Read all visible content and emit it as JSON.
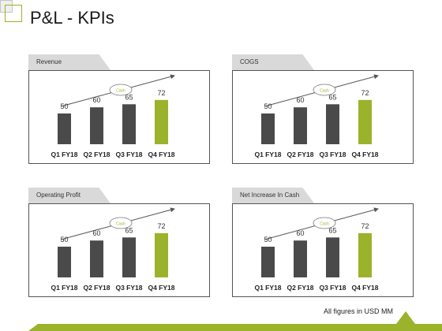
{
  "page": {
    "title": "P&L - KPIs",
    "footnote": "All figures in USD MM"
  },
  "colors": {
    "bar": "#4a4a4a",
    "highlight": "#9bb22b",
    "tab": "#d9d9d9",
    "accent": "#9bb22b"
  },
  "bubble_label": "Cash",
  "chart_data": [
    {
      "type": "bar",
      "title": "Revenue",
      "categories": [
        "Q1 FY18",
        "Q2 FY18",
        "Q3 FY18",
        "Q4 FY18"
      ],
      "values": [
        50,
        60,
        65,
        72
      ],
      "highlight_index": 3,
      "ylim": [
        0,
        80
      ],
      "grid": false,
      "trend_arrow": true
    },
    {
      "type": "bar",
      "title": "COGS",
      "categories": [
        "Q1 FY18",
        "Q2 FY18",
        "Q3 FY18",
        "Q4 FY18"
      ],
      "values": [
        50,
        60,
        65,
        72
      ],
      "highlight_index": 3,
      "ylim": [
        0,
        80
      ],
      "grid": false,
      "trend_arrow": true
    },
    {
      "type": "bar",
      "title": "Operating Profit",
      "categories": [
        "Q1 FY18",
        "Q2 FY18",
        "Q3 FY18",
        "Q4 FY18"
      ],
      "values": [
        50,
        60,
        65,
        72
      ],
      "highlight_index": 3,
      "ylim": [
        0,
        80
      ],
      "grid": false,
      "trend_arrow": true
    },
    {
      "type": "bar",
      "title": "Net Increase In Cash",
      "categories": [
        "Q1 FY18",
        "Q2 FY18",
        "Q3 FY18",
        "Q4 FY18"
      ],
      "values": [
        50,
        60,
        65,
        72
      ],
      "highlight_index": 3,
      "ylim": [
        0,
        80
      ],
      "grid": false,
      "trend_arrow": true
    }
  ]
}
